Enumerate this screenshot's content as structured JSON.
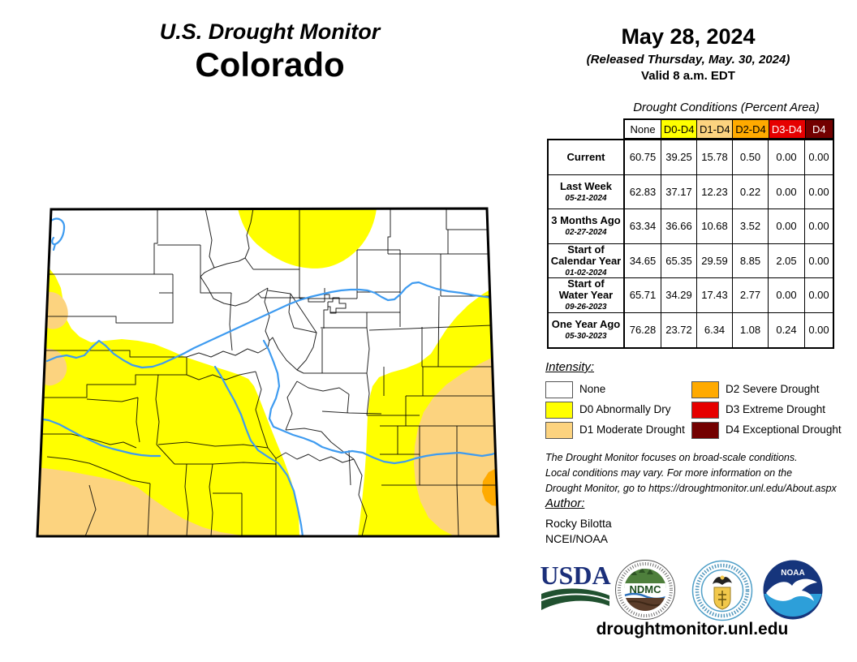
{
  "title": {
    "line1": "U.S. Drought Monitor",
    "line2": "Colorado"
  },
  "date_block": {
    "date": "May 28, 2024",
    "released": "(Released Thursday, May. 30, 2024)",
    "valid": "Valid 8 a.m. EDT"
  },
  "table": {
    "caption": "Drought Conditions (Percent Area)",
    "columns": [
      "None",
      "D0-D4",
      "D1-D4",
      "D2-D4",
      "D3-D4",
      "D4"
    ],
    "rows": [
      {
        "label": "Current",
        "date": "",
        "values": [
          "60.75",
          "39.25",
          "15.78",
          "0.50",
          "0.00",
          "0.00"
        ]
      },
      {
        "label": "Last Week",
        "date": "05-21-2024",
        "values": [
          "62.83",
          "37.17",
          "12.23",
          "0.22",
          "0.00",
          "0.00"
        ]
      },
      {
        "label": "3 Months Ago",
        "date": "02-27-2024",
        "values": [
          "63.34",
          "36.66",
          "10.68",
          "3.52",
          "0.00",
          "0.00"
        ]
      },
      {
        "label": "Start of\nCalendar Year",
        "date": "01-02-2024",
        "values": [
          "34.65",
          "65.35",
          "29.59",
          "8.85",
          "2.05",
          "0.00"
        ]
      },
      {
        "label": "Start of\nWater Year",
        "date": "09-26-2023",
        "values": [
          "65.71",
          "34.29",
          "17.43",
          "2.77",
          "0.00",
          "0.00"
        ]
      },
      {
        "label": "One Year Ago",
        "date": "05-30-2023",
        "values": [
          "76.28",
          "23.72",
          "6.34",
          "1.08",
          "0.24",
          "0.00"
        ]
      }
    ]
  },
  "legend": {
    "title": "Intensity:",
    "items": [
      {
        "label": "None",
        "color_key": "none",
        "col": 0,
        "row": 0
      },
      {
        "label": "D0 Abnormally Dry",
        "color_key": "d0",
        "col": 0,
        "row": 1
      },
      {
        "label": "D1 Moderate Drought",
        "color_key": "d1",
        "col": 0,
        "row": 2
      },
      {
        "label": "D2 Severe Drought",
        "color_key": "d2",
        "col": 1,
        "row": 0
      },
      {
        "label": "D3 Extreme Drought",
        "color_key": "d3",
        "col": 1,
        "row": 1
      },
      {
        "label": "D4 Exceptional Drought",
        "color_key": "d4",
        "col": 1,
        "row": 2
      }
    ]
  },
  "disclaimer_lines": [
    "The Drought Monitor focuses on broad-scale conditions.",
    "Local conditions may vary. For more information on the",
    "Drought Monitor, go to https://droughtmonitor.unl.edu/About.aspx"
  ],
  "author": {
    "heading": "Author:",
    "name": "Rocky Bilotta",
    "org": "NCEI/NOAA"
  },
  "footer": {
    "url": "droughtmonitor.unl.edu"
  },
  "logos": {
    "usda": "USDA",
    "ndmc": "NDMC",
    "noaa": "NOAA"
  },
  "colors": {
    "none": "#FFFFFF",
    "d0": "#FFFF00",
    "d1": "#FCD37F",
    "d2": "#FFAA00",
    "d3": "#E60000",
    "d4": "#730000",
    "river": "#3E9BF0"
  }
}
